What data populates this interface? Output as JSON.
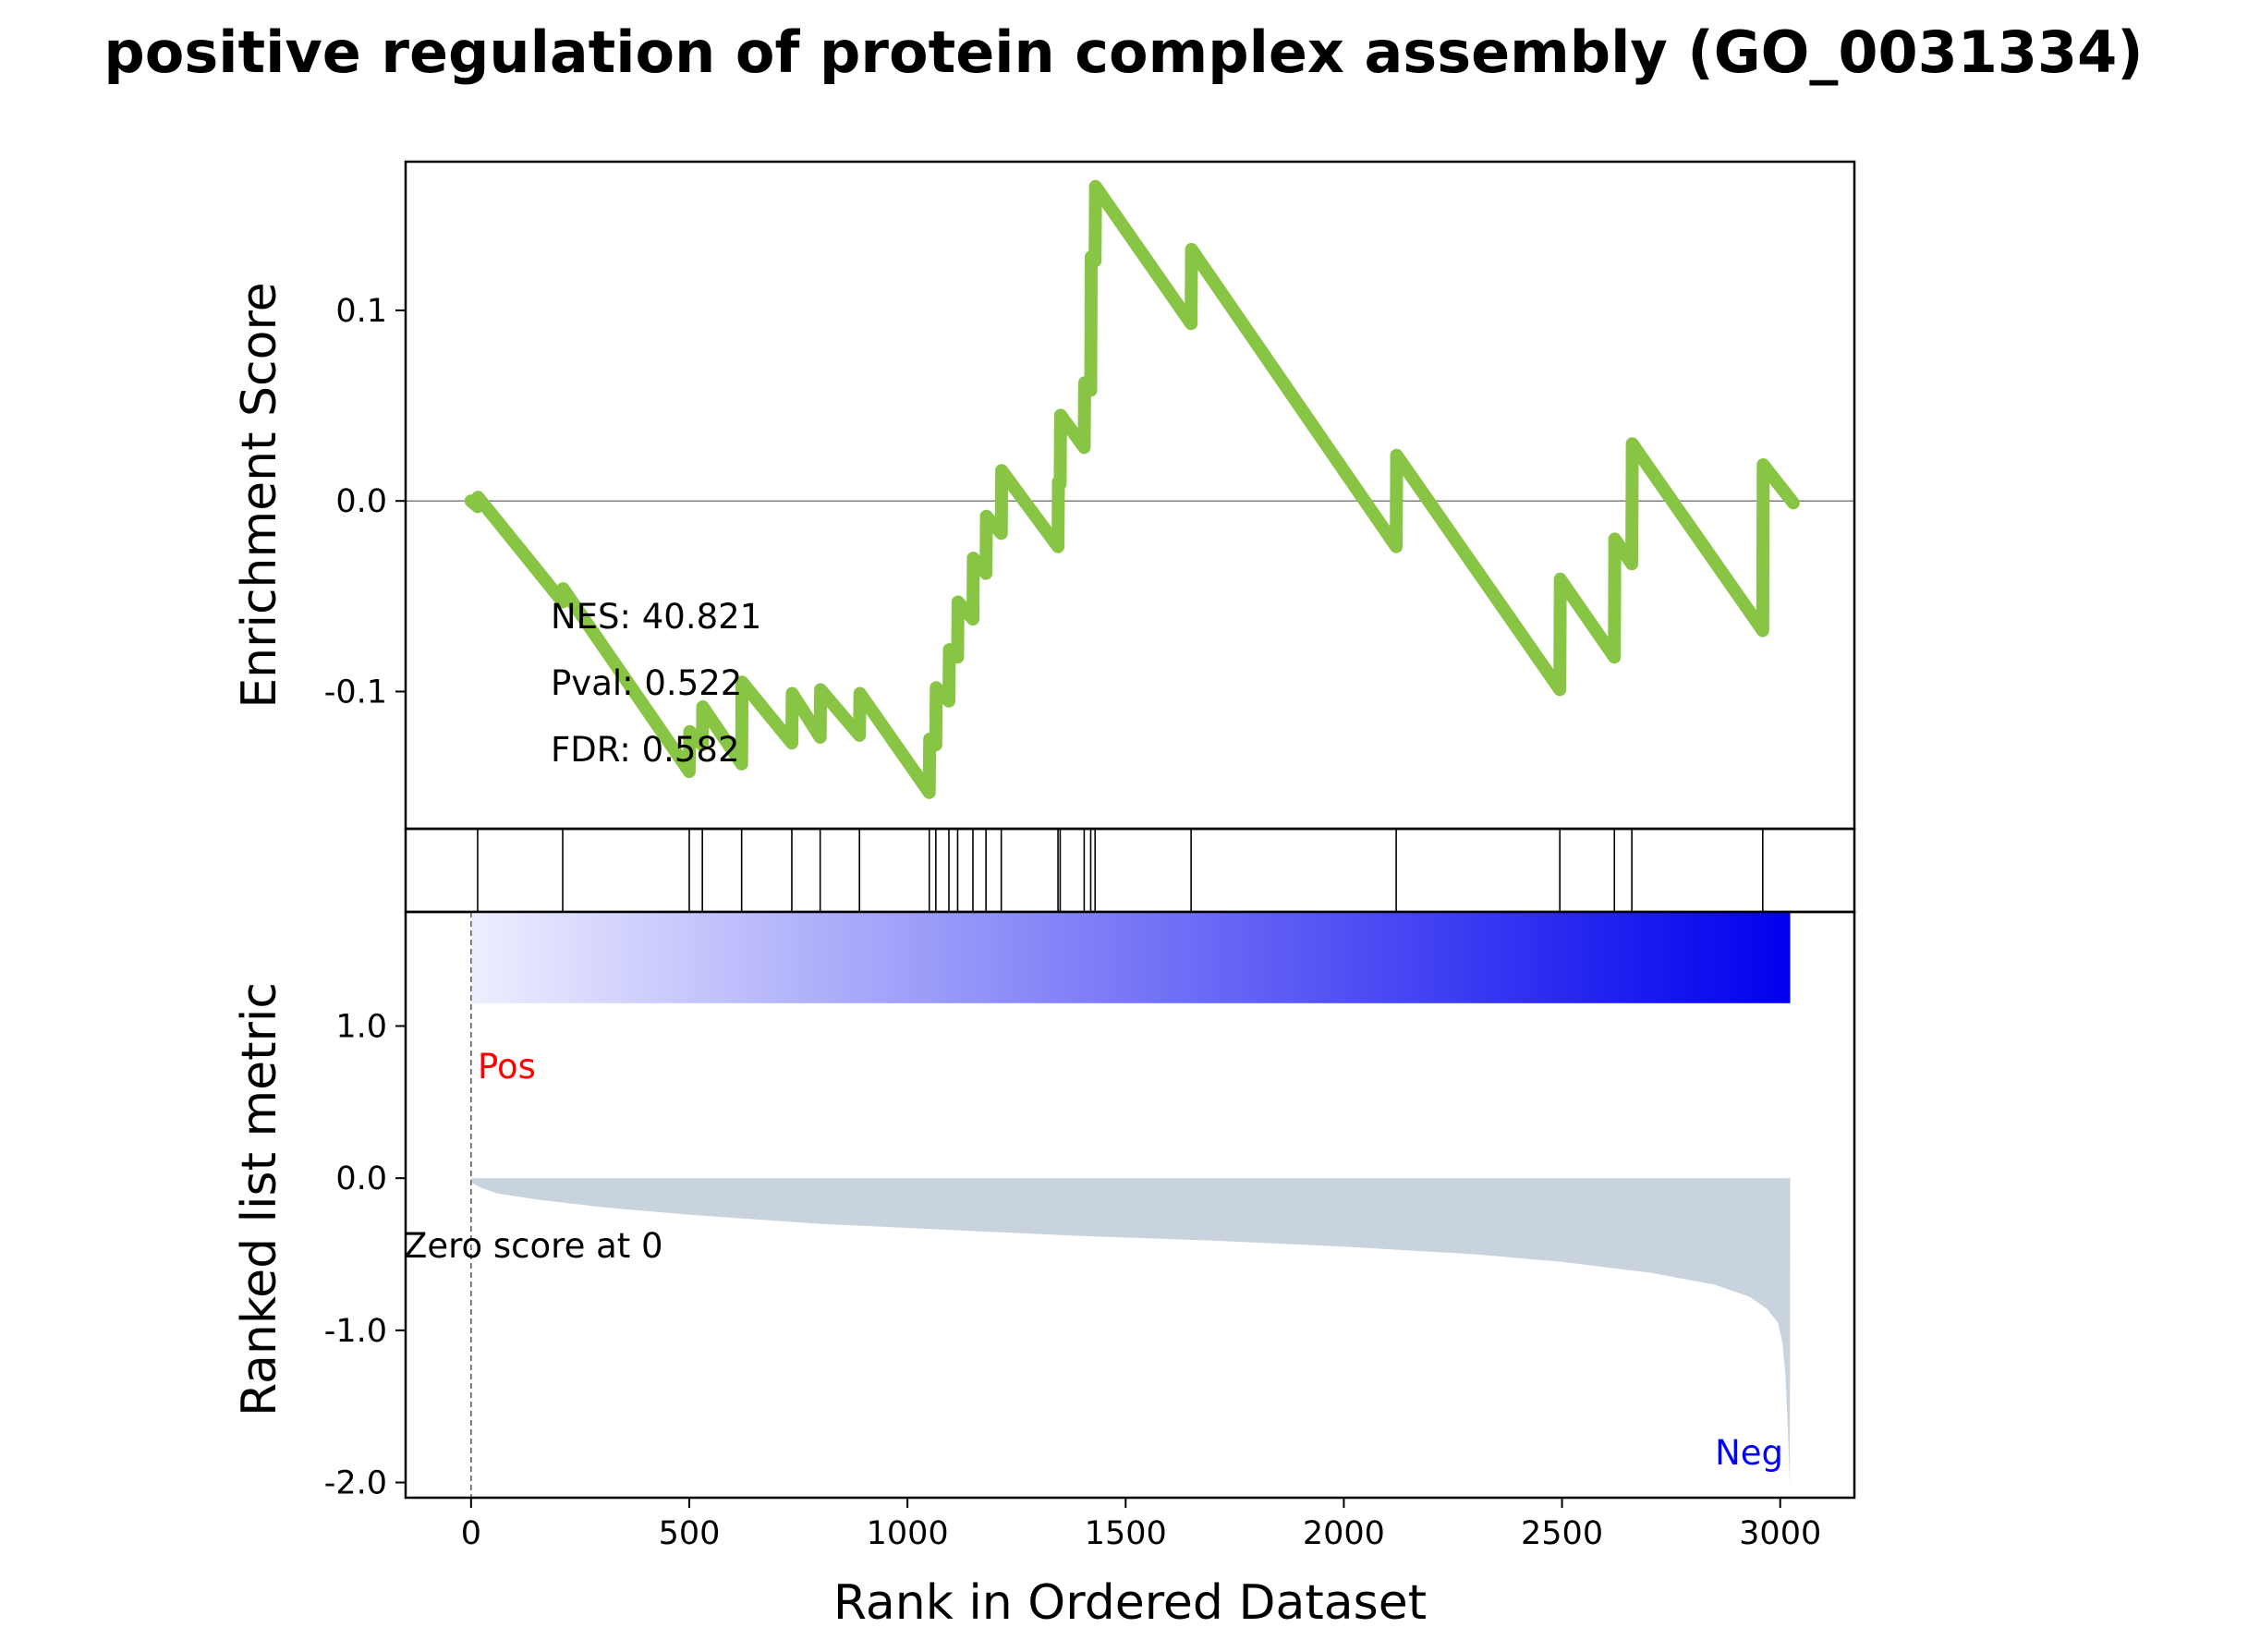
{
  "chart_data": {
    "type": "line",
    "title": "positive regulation of protein complex assembly (GO_0031334)",
    "xlabel": "Rank in Ordered Dataset",
    "xlim": [
      -150,
      3170
    ],
    "x_ticks": [
      0,
      500,
      1000,
      1500,
      2000,
      2500,
      3000
    ],
    "x_tick_labels": [
      "0",
      "500",
      "1000",
      "1500",
      "2000",
      "2500",
      "3000"
    ],
    "colors": {
      "es_line": "#88c544",
      "metric_fill": "#c9d3dd",
      "pos_label": "#ff0000",
      "neg_label": "#0000ff",
      "gradient_start": "#eeeeff",
      "gradient_end": "#0000ee"
    },
    "enrichment": {
      "ylabel": "Enrichment Score",
      "ylim": [
        -0.172,
        0.178
      ],
      "y_ticks": [
        0.1,
        0.0,
        -0.1
      ],
      "y_tick_labels": [
        "0.1",
        "0.0",
        "-0.1"
      ],
      "zero_line": true,
      "stats": [
        "NES: 40.821",
        "Pval: 0.522",
        "FDR: 0.582"
      ],
      "points": [
        [
          0,
          0.0
        ],
        [
          15,
          -0.003
        ],
        [
          16,
          0.002
        ],
        [
          210,
          -0.053
        ],
        [
          211,
          -0.046
        ],
        [
          500,
          -0.142
        ],
        [
          501,
          -0.121
        ],
        [
          530,
          -0.128
        ],
        [
          531,
          -0.108
        ],
        [
          620,
          -0.138
        ],
        [
          621,
          -0.095
        ],
        [
          735,
          -0.127
        ],
        [
          736,
          -0.101
        ],
        [
          800,
          -0.124
        ],
        [
          801,
          -0.099
        ],
        [
          890,
          -0.123
        ],
        [
          891,
          -0.101
        ],
        [
          1050,
          -0.153
        ],
        [
          1051,
          -0.125
        ],
        [
          1065,
          -0.128
        ],
        [
          1066,
          -0.098
        ],
        [
          1095,
          -0.105
        ],
        [
          1096,
          -0.078
        ],
        [
          1115,
          -0.082
        ],
        [
          1116,
          -0.053
        ],
        [
          1150,
          -0.062
        ],
        [
          1151,
          -0.03
        ],
        [
          1180,
          -0.038
        ],
        [
          1181,
          -0.008
        ],
        [
          1215,
          -0.017
        ],
        [
          1216,
          0.016
        ],
        [
          1345,
          -0.024
        ],
        [
          1346,
          0.01
        ],
        [
          1350,
          0.009
        ],
        [
          1351,
          0.045
        ],
        [
          1405,
          0.028
        ],
        [
          1406,
          0.062
        ],
        [
          1420,
          0.058
        ],
        [
          1421,
          0.128
        ],
        [
          1430,
          0.126
        ],
        [
          1431,
          0.165
        ],
        [
          1650,
          0.093
        ],
        [
          1651,
          0.132
        ],
        [
          2120,
          -0.024
        ],
        [
          2121,
          0.024
        ],
        [
          2495,
          -0.099
        ],
        [
          2496,
          -0.041
        ],
        [
          2620,
          -0.082
        ],
        [
          2621,
          -0.02
        ],
        [
          2660,
          -0.033
        ],
        [
          2661,
          0.03
        ],
        [
          2960,
          -0.068
        ],
        [
          2961,
          0.019
        ],
        [
          3030,
          -0.001
        ]
      ]
    },
    "hits": [
      15,
      210,
      500,
      530,
      620,
      735,
      800,
      890,
      1050,
      1065,
      1095,
      1115,
      1150,
      1180,
      1215,
      1345,
      1350,
      1405,
      1420,
      1430,
      1650,
      2120,
      2495,
      2620,
      2660,
      2960
    ],
    "ranked_metric": {
      "ylabel": "Ranked list metric",
      "ylim": [
        -2.1,
        1.75
      ],
      "y_ticks": [
        1.0,
        0.0,
        -1.0,
        -2.0
      ],
      "y_tick_labels": [
        "1.0",
        "0.0",
        "-1.0",
        "-2.0"
      ],
      "pos_label": "Pos",
      "neg_label": "Neg",
      "zero_label": "Zero score at 0",
      "gradient_range": [
        1.15,
        1.75
      ],
      "points": [
        [
          0,
          0.0
        ],
        [
          3,
          -0.03
        ],
        [
          20,
          -0.06
        ],
        [
          60,
          -0.1
        ],
        [
          150,
          -0.14
        ],
        [
          300,
          -0.19
        ],
        [
          500,
          -0.24
        ],
        [
          800,
          -0.3
        ],
        [
          1100,
          -0.34
        ],
        [
          1400,
          -0.38
        ],
        [
          1700,
          -0.41
        ],
        [
          2000,
          -0.45
        ],
        [
          2300,
          -0.5
        ],
        [
          2500,
          -0.55
        ],
        [
          2700,
          -0.62
        ],
        [
          2850,
          -0.7
        ],
        [
          2930,
          -0.78
        ],
        [
          2970,
          -0.86
        ],
        [
          2995,
          -0.95
        ],
        [
          3005,
          -1.08
        ],
        [
          3012,
          -1.3
        ],
        [
          3016,
          -1.55
        ],
        [
          3020,
          -1.85
        ],
        [
          3022,
          -2.02
        ],
        [
          3023,
          0.0
        ]
      ]
    }
  }
}
